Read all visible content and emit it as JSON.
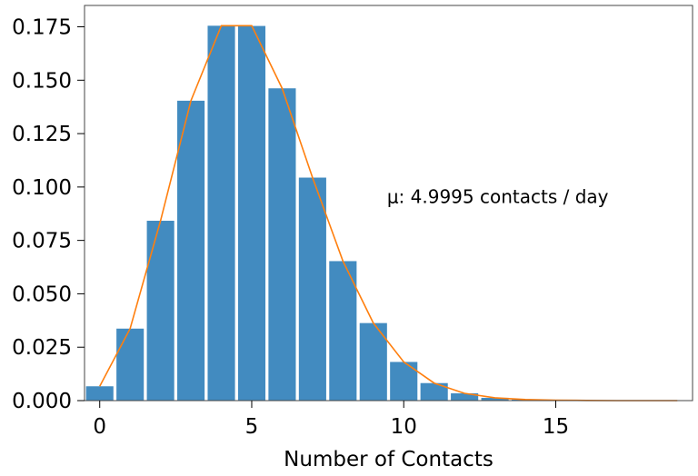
{
  "chart_data": {
    "type": "bar",
    "xlabel": "Number of Contacts",
    "ylabel": "",
    "annotation": "μ: 4.9995 contacts / day",
    "xlim": [
      -0.5,
      19.5
    ],
    "ylim": [
      0,
      0.185
    ],
    "xticks": [
      0,
      5,
      10,
      15
    ],
    "xtick_labels": [
      "0",
      "5",
      "10",
      "15"
    ],
    "yticks": [
      0,
      0.025,
      0.05,
      0.075,
      0.1,
      0.125,
      0.15,
      0.175
    ],
    "ytick_labels": [
      "0.000",
      "0.025",
      "0.050",
      "0.075",
      "0.100",
      "0.125",
      "0.150",
      "0.175"
    ],
    "grid": false,
    "series": [
      {
        "type": "bar",
        "color": "#428bc0",
        "x": [
          0,
          1,
          2,
          3,
          4,
          5,
          6,
          7,
          8,
          9,
          10,
          11,
          12,
          13,
          14,
          15,
          16,
          17,
          18,
          19
        ],
        "values": [
          0.0067,
          0.0337,
          0.0842,
          0.1404,
          0.1755,
          0.1754,
          0.1462,
          0.1044,
          0.0653,
          0.0363,
          0.0181,
          0.0082,
          0.0034,
          0.0013,
          0.0005,
          0.0002,
          0.0,
          0.0,
          0.0,
          0.0
        ]
      },
      {
        "type": "line",
        "color": "#ff7f0e",
        "x": [
          0,
          1,
          2,
          3,
          4,
          5,
          6,
          7,
          8,
          9,
          10,
          11,
          12,
          13,
          14,
          15,
          16,
          17,
          18,
          19
        ],
        "values": [
          0.0067,
          0.0337,
          0.0842,
          0.1404,
          0.1755,
          0.1755,
          0.1462,
          0.1044,
          0.0653,
          0.0363,
          0.0181,
          0.0082,
          0.0034,
          0.0013,
          0.0005,
          0.0002,
          0.0001,
          0.0,
          0.0,
          0.0
        ]
      }
    ]
  }
}
